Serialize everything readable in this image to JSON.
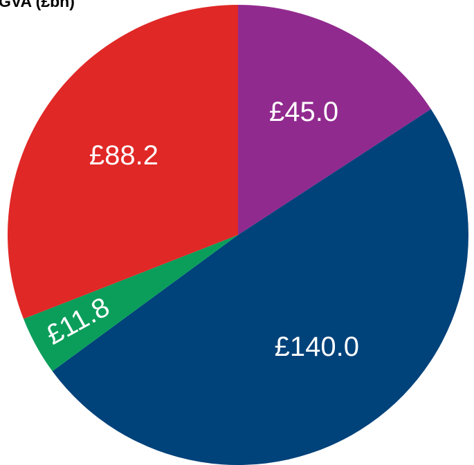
{
  "chart_data": {
    "type": "pie",
    "title": "GVA (£bn)",
    "values": [
      45.0,
      140.0,
      11.8,
      88.2
    ],
    "value_labels": [
      "£45.0",
      "£140.0",
      "£11.8",
      "£88.2"
    ],
    "colors": [
      "#912a8f",
      "#00427a",
      "#0b9e5b",
      "#e02826"
    ]
  }
}
